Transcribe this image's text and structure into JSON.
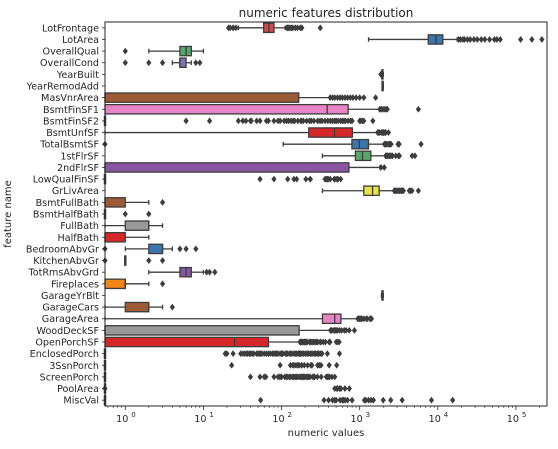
{
  "chart_data": {
    "type": "box",
    "orientation": "horizontal",
    "title": "numeric features distribution",
    "xlabel": "numeric values",
    "ylabel": "feature name",
    "xscale": "log",
    "xlim": [
      0.55,
      250000
    ],
    "x_ticks": [
      {
        "value": 1,
        "base": "10",
        "exp": "0"
      },
      {
        "value": 10,
        "base": "10",
        "exp": "1"
      },
      {
        "value": 100,
        "base": "10",
        "exp": "2"
      },
      {
        "value": 1000,
        "base": "10",
        "exp": "3"
      },
      {
        "value": 10000,
        "base": "10",
        "exp": "4"
      },
      {
        "value": 100000,
        "base": "10",
        "exp": "5"
      }
    ],
    "grid": false,
    "palette": [
      "#c44e52",
      "#4c72b0",
      "#55a868",
      "#8172b2",
      "#ccb974",
      "#937860",
      "#da8bc3",
      "#8c8c8c",
      "#ccb974",
      "#64b5cd"
    ],
    "features": [
      {
        "name": "LotFrontage",
        "color": "#cd4a4a",
        "q1": 59,
        "median": 69,
        "q3": 80,
        "wlo": 28,
        "whi": 111,
        "outliers": [
          21,
          22,
          24,
          24,
          26,
          117,
          120,
          124,
          128,
          134,
          140,
          150,
          160,
          174,
          182,
          313
        ]
      },
      {
        "name": "LotArea",
        "color": "#3a75ad",
        "q1": 7550,
        "median": 9480,
        "q3": 11600,
        "wlo": 1300,
        "whi": 17700,
        "outliers": [
          18500,
          19500,
          21000,
          22000,
          24000,
          26000,
          29000,
          32000,
          36000,
          40000,
          46000,
          53000,
          57000,
          63000,
          115000,
          160000,
          215000
        ]
      },
      {
        "name": "OverallQual",
        "color": "#55a868",
        "q1": 5,
        "median": 6,
        "q3": 7,
        "wlo": 2,
        "whi": 10,
        "outliers": [
          1
        ]
      },
      {
        "name": "OverallCond",
        "color": "#8172b2",
        "q1": 5,
        "median": 5,
        "q3": 6,
        "wlo": 4,
        "whi": 7,
        "outliers": [
          1,
          2,
          3,
          8,
          9
        ]
      },
      {
        "name": "YearBuilt",
        "color": "#ccb974",
        "q1": 1954,
        "median": 1973,
        "q3": 2000,
        "wlo": 1885,
        "whi": 2010,
        "outliers": [
          1872,
          1875,
          1880
        ]
      },
      {
        "name": "YearRemodAdd",
        "color": "#64b5cd",
        "q1": 1967,
        "median": 1994,
        "q3": 2004,
        "wlo": 1950,
        "whi": 2010,
        "outliers": []
      },
      {
        "name": "MasVnrArea",
        "color": "#9c5b36",
        "q1": 0,
        "median": 0,
        "q3": 166,
        "wlo": 0,
        "whi": 415,
        "outliers": [
          420,
          450,
          480,
          520,
          560,
          600,
          650,
          700,
          760,
          820,
          900,
          1000,
          1130,
          1600
        ]
      },
      {
        "name": "BsmtFinSF1",
        "color": "#e785c4",
        "q1": 0,
        "median": 384,
        "q3": 712,
        "wlo": 0,
        "whi": 1780,
        "outliers": [
          1810,
          1880,
          1904,
          2000,
          2096,
          2188,
          2260,
          5644
        ]
      },
      {
        "name": "BsmtFinSF2",
        "color": "#8c8c8c",
        "q1": 0,
        "median": 0,
        "q3": 0,
        "wlo": 0,
        "whi": 0,
        "outliers": [
          6,
          12,
          28,
          32,
          35,
          40,
          41,
          48,
          53,
          64,
          68,
          80,
          90,
          96,
          108,
          116,
          123,
          132,
          141,
          147,
          162,
          177,
          180,
          190,
          210,
          228,
          240,
          260,
          290,
          311,
          330,
          360,
          391,
          420,
          450,
          480,
          500,
          530,
          570,
          600,
          630,
          660,
          712,
          768,
          800,
          1000,
          1029,
          1085,
          1127,
          1474
        ]
      },
      {
        "name": "BsmtUnfSF",
        "color": "#d62728",
        "q1": 223,
        "median": 477,
        "q3": 808,
        "wlo": 0,
        "whi": 1685,
        "outliers": [
          1700,
          1753,
          1800,
          1900,
          1950,
          2002,
          2042,
          2121,
          2153,
          2336
        ]
      },
      {
        "name": "TotalBsmtSF",
        "color": "#3a75ad",
        "q1": 796,
        "median": 991,
        "q3": 1298,
        "wlo": 105,
        "whi": 2046,
        "outliers": [
          0,
          2078,
          2121,
          2158,
          2223,
          2330,
          2392,
          2444,
          2524,
          3094,
          3138,
          3200,
          6110
        ]
      },
      {
        "name": "1stFlrSF",
        "color": "#55a868",
        "q1": 882,
        "median": 1087,
        "q3": 1391,
        "wlo": 334,
        "whi": 2136,
        "outliers": [
          2158,
          2207,
          2259,
          2300,
          2402,
          2444,
          2524,
          2633,
          2898,
          3138,
          3228,
          4692,
          5095
        ]
      },
      {
        "name": "2ndFlrSF",
        "color": "#8a55a0",
        "q1": 0,
        "median": 0,
        "q3": 728,
        "wlo": 0,
        "whi": 1818,
        "outliers": [
          1872,
          2065
        ]
      },
      {
        "name": "LowQualFinSF",
        "color": "#ccb974",
        "q1": 0,
        "median": 0,
        "q3": 0,
        "wlo": 0,
        "whi": 0,
        "outliers": [
          53,
          80,
          120,
          144,
          156,
          205,
          232,
          234,
          360,
          371,
          384,
          390,
          397,
          420,
          473,
          479,
          481,
          513,
          514,
          515,
          528,
          572
        ]
      },
      {
        "name": "GrLivArea",
        "color": "#e8e341",
        "q1": 1130,
        "median": 1464,
        "q3": 1777,
        "wlo": 334,
        "whi": 2730,
        "outliers": [
          2775,
          2822,
          2868,
          2945,
          3082,
          3112,
          3228,
          3279,
          3395,
          3447,
          3493,
          3608,
          3627,
          4316,
          4476,
          4676,
          5642
        ]
      },
      {
        "name": "BsmtFullBath",
        "color": "#9c5b36",
        "q1": 0,
        "median": 0,
        "q3": 1,
        "wlo": 0,
        "whi": 2,
        "outliers": [
          3
        ]
      },
      {
        "name": "BsmtHalfBath",
        "color": "#e785c4",
        "q1": 0,
        "median": 0,
        "q3": 0,
        "wlo": 0,
        "whi": 0,
        "outliers": [
          1,
          2
        ]
      },
      {
        "name": "FullBath",
        "color": "#999999",
        "q1": 1,
        "median": 2,
        "q3": 2,
        "wlo": 0,
        "whi": 3,
        "outliers": []
      },
      {
        "name": "HalfBath",
        "color": "#d62728",
        "q1": 0,
        "median": 0,
        "q3": 1,
        "wlo": 0,
        "whi": 2,
        "outliers": []
      },
      {
        "name": "BedroomAbvGr",
        "color": "#3a75ad",
        "q1": 2,
        "median": 3,
        "q3": 3,
        "wlo": 1,
        "whi": 4,
        "outliers": [
          0,
          5,
          6,
          8
        ]
      },
      {
        "name": "KitchenAbvGr",
        "color": "#55a868",
        "q1": 1,
        "median": 1,
        "q3": 1,
        "wlo": 1,
        "whi": 1,
        "outliers": [
          0,
          2,
          3
        ]
      },
      {
        "name": "TotRmsAbvGrd",
        "color": "#8a55a0",
        "q1": 5,
        "median": 6,
        "q3": 7,
        "wlo": 2,
        "whi": 10,
        "outliers": [
          11,
          12,
          14
        ]
      },
      {
        "name": "Fireplaces",
        "color": "#f0851a",
        "q1": 0,
        "median": 1,
        "q3": 1,
        "wlo": 0,
        "whi": 2,
        "outliers": [
          3
        ]
      },
      {
        "name": "GarageYrBlt",
        "color": "#64b5cd",
        "q1": 1961,
        "median": 1980,
        "q3": 2002,
        "wlo": 1900,
        "whi": 2010,
        "outliers": []
      },
      {
        "name": "GarageCars",
        "color": "#9c5b36",
        "q1": 1,
        "median": 2,
        "q3": 2,
        "wlo": 0,
        "whi": 3,
        "outliers": [
          4
        ]
      },
      {
        "name": "GarageArea",
        "color": "#e785c4",
        "q1": 334,
        "median": 480,
        "q3": 576,
        "wlo": 0,
        "whi": 938,
        "outliers": [
          948,
          954,
          968,
          995,
          1014,
          1043,
          1069,
          1134,
          1220,
          1248,
          1356,
          1390,
          1418
        ]
      },
      {
        "name": "WoodDeckSF",
        "color": "#999999",
        "q1": 0,
        "median": 0,
        "q3": 168,
        "wlo": 0,
        "whi": 420,
        "outliers": [
          424,
          430,
          441,
          468,
          474,
          486,
          500,
          517,
          550,
          586,
          635,
          670,
          736,
          857
        ]
      },
      {
        "name": "OpenPorchSF",
        "color": "#d62728",
        "q1": 0,
        "median": 25,
        "q3": 68,
        "wlo": 0,
        "whi": 170,
        "outliers": [
          172,
          174,
          176,
          178,
          182,
          184,
          187,
          192,
          195,
          198,
          200,
          203,
          205,
          210,
          211,
          213,
          228,
          231,
          234,
          236,
          244,
          252,
          258,
          262,
          274,
          282,
          287,
          291,
          312,
          319,
          341,
          364,
          406,
          418,
          502,
          523,
          547
        ]
      },
      {
        "name": "EnclosedPorch",
        "color": "#3a75ad",
        "q1": 0,
        "median": 0,
        "q3": 0,
        "wlo": 0,
        "whi": 0,
        "outliers": [
          19,
          20,
          24,
          30,
          32,
          34,
          36,
          37,
          39,
          40,
          42,
          44,
          48,
          50,
          52,
          54,
          56,
          60,
          64,
          68,
          72,
          77,
          80,
          84,
          86,
          90,
          96,
          100,
          102,
          104,
          112,
          116,
          120,
          128,
          130,
          136,
          144,
          150,
          156,
          164,
          168,
          172,
          176,
          184,
          192,
          202,
          212,
          216,
          224,
          236,
          240,
          252,
          264,
          272,
          286,
          294,
          301,
          318,
          330,
          386,
          552
        ]
      },
      {
        "name": "3SsnPorch",
        "color": "#55a868",
        "q1": 0,
        "median": 0,
        "q3": 0,
        "wlo": 0,
        "whi": 0,
        "outliers": [
          23,
          96,
          130,
          140,
          144,
          153,
          162,
          168,
          180,
          182,
          196,
          216,
          238,
          245,
          290,
          304,
          320,
          407,
          508
        ]
      },
      {
        "name": "ScreenPorch",
        "color": "#8a55a0",
        "q1": 0,
        "median": 0,
        "q3": 0,
        "wlo": 0,
        "whi": 0,
        "outliers": [
          40,
          53,
          60,
          63,
          80,
          90,
          95,
          99,
          100,
          110,
          115,
          120,
          126,
          130,
          138,
          142,
          144,
          150,
          155,
          160,
          168,
          175,
          180,
          185,
          189,
          192,
          197,
          200,
          210,
          216,
          222,
          224,
          233,
          252,
          259,
          260,
          265,
          288,
          322,
          374,
          385,
          396,
          410,
          440,
          480
        ]
      },
      {
        "name": "PoolArea",
        "color": "#ccb974",
        "q1": 0,
        "median": 0,
        "q3": 0,
        "wlo": 0,
        "whi": 0,
        "outliers": [
          0,
          480,
          512,
          519,
          555,
          576,
          648,
          738
        ]
      },
      {
        "name": "MiscVal",
        "color": "#64b5cd",
        "q1": 0,
        "median": 0,
        "q3": 0,
        "wlo": 0,
        "whi": 0,
        "outliers": [
          54,
          350,
          400,
          450,
          480,
          500,
          560,
          600,
          620,
          650,
          700,
          800,
          1150,
          1200,
          1300,
          1400,
          1500,
          2000,
          2500,
          3500,
          8300,
          15500
        ]
      }
    ]
  }
}
